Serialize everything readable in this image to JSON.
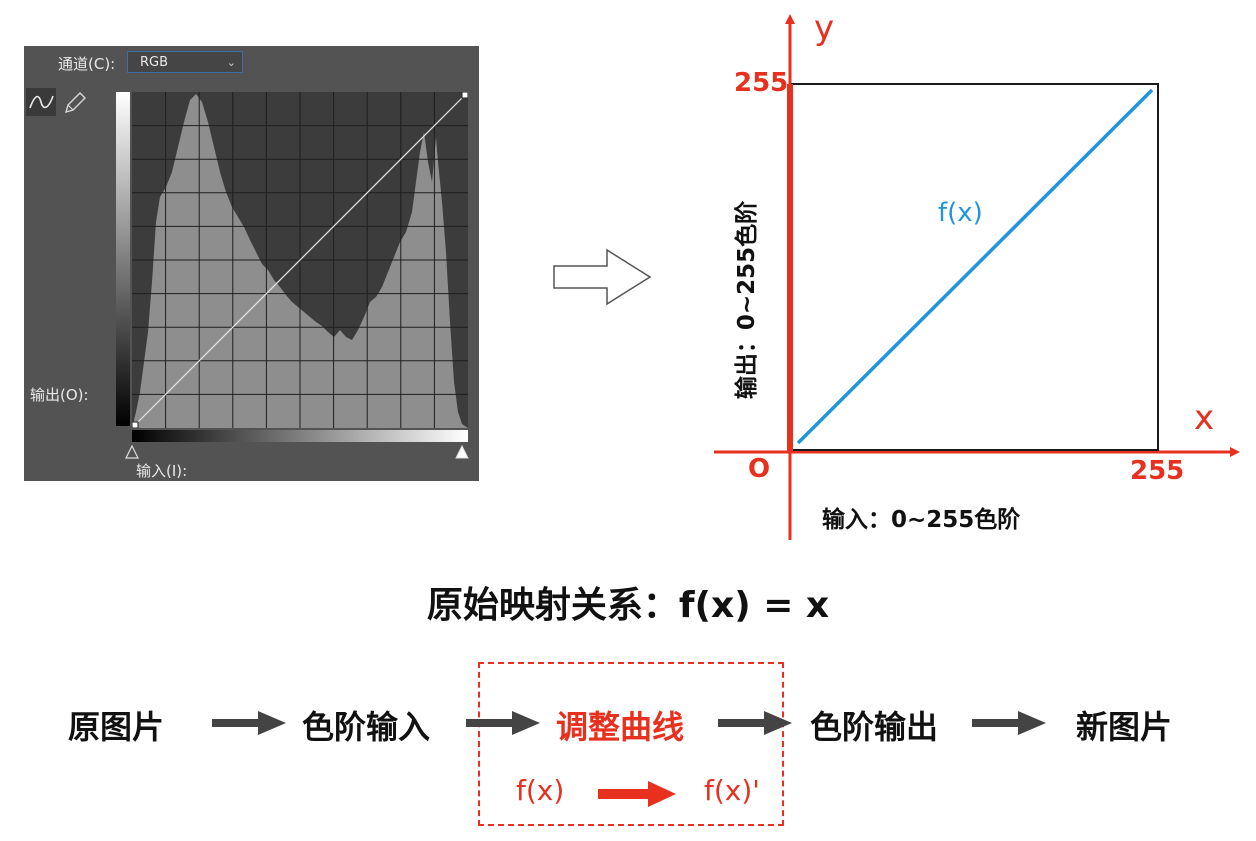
{
  "panel": {
    "channel_label": "通道(C):",
    "channel_value": "RGB",
    "output_label": "输出(O):",
    "input_label": "输入(I):"
  },
  "graph": {
    "y_axis": "y",
    "x_axis": "x",
    "origin": "O",
    "y_max": "255",
    "x_max": "255",
    "func_label": "f(x)",
    "output_caption": "输出：0~255色阶",
    "input_caption": "输入：0~255色阶"
  },
  "mapping_title": "原始映射关系：f(x) = x",
  "flow": {
    "steps": [
      "原图片",
      "色阶输入",
      "调整曲线",
      "色阶输出",
      "新图片"
    ],
    "curve_from": "f(x)",
    "curve_to": "f(x)'"
  },
  "colors": {
    "accent_red": "#e8301e",
    "line_blue": "#1f95dd",
    "arrow_gray": "#444444"
  },
  "chart_data": {
    "type": "line",
    "x": [
      0,
      255
    ],
    "y": [
      0,
      255
    ],
    "xlim": [
      0,
      255
    ],
    "ylim": [
      0,
      255
    ],
    "series": [
      {
        "name": "f(x)",
        "x": [
          0,
          255
        ],
        "y": [
          0,
          255
        ]
      }
    ]
  }
}
